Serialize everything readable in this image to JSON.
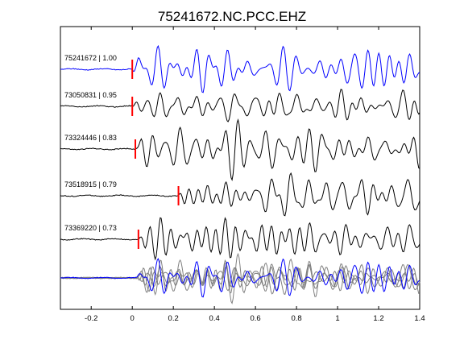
{
  "chart_data": {
    "type": "line",
    "title": "75241672.NC.PCC.EHZ",
    "xlabel": "",
    "ylabel": "",
    "xlim": [
      -0.35,
      1.4
    ],
    "x_ticks": [
      -0.2,
      0,
      0.2,
      0.4,
      0.6,
      0.8,
      1,
      1.2,
      1.4
    ],
    "x_tick_labels": [
      "-0.2",
      "0",
      "0.2",
      "0.4",
      "0.6",
      "0.8",
      "1",
      "1.2",
      "1.4"
    ],
    "grid": false,
    "colors": {
      "reference": "#0000ff",
      "trace": "#000000",
      "pick": "#ff0000",
      "stack": "#808080"
    },
    "series": [
      {
        "name": "75241672 | 1.00",
        "event_id": "75241672",
        "correlation": "1.00",
        "pick_time": 0.0,
        "color": "#0000ff",
        "seed": 1
      },
      {
        "name": "73050831 | 0.95",
        "event_id": "73050831",
        "correlation": "0.95",
        "pick_time": 0.0,
        "color": "#000000",
        "seed": 2
      },
      {
        "name": "73324446 | 0.83",
        "event_id": "73324446",
        "correlation": "0.83",
        "pick_time": 0.015,
        "color": "#000000",
        "seed": 3
      },
      {
        "name": "73518915 | 0.79",
        "event_id": "73518915",
        "correlation": "0.79",
        "pick_time": 0.225,
        "color": "#000000",
        "seed": 4
      },
      {
        "name": "73369220 | 0.73",
        "event_id": "73369220",
        "correlation": "0.73",
        "pick_time": 0.03,
        "color": "#000000",
        "seed": 5
      }
    ],
    "stack": {
      "overlay_colors": [
        "#808080",
        "#0000ff"
      ]
    }
  }
}
